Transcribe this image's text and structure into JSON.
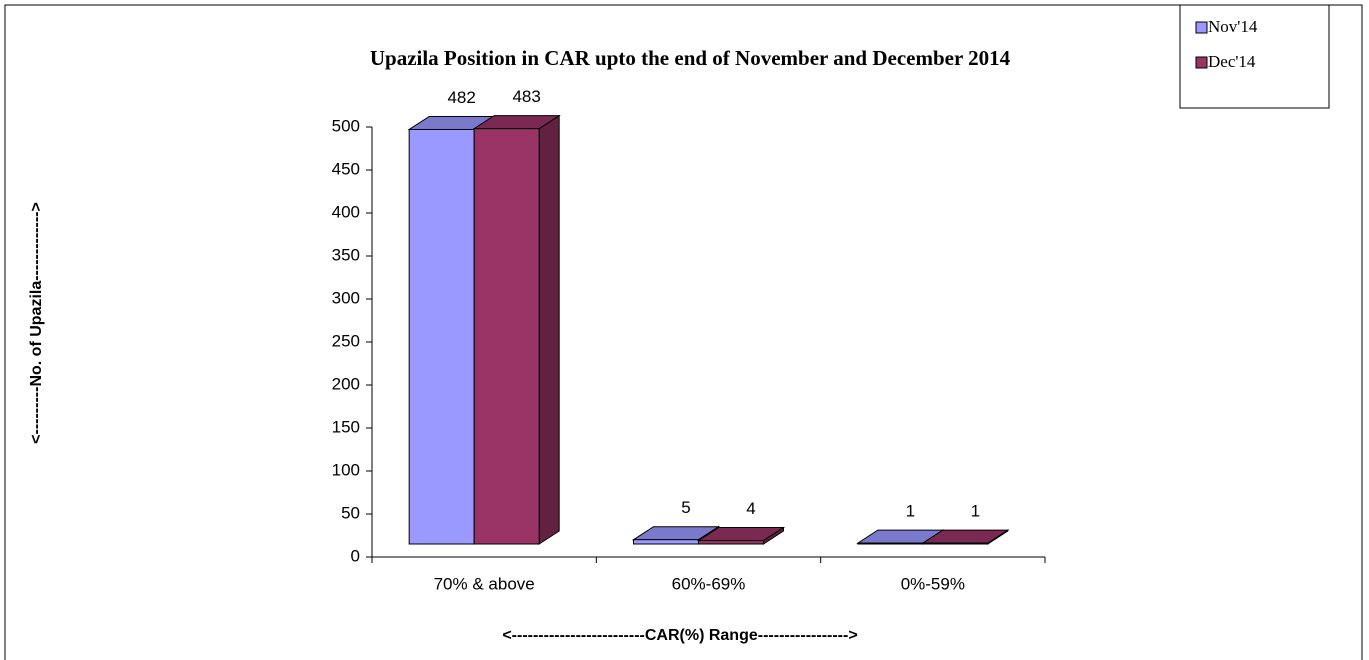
{
  "chart_data": {
    "type": "bar3d",
    "title": "Upazila Position in CAR upto the end of  November and December 2014",
    "y_axis_label": "<---------No. of Upazila------------->",
    "x_axis_label": "<-------------------------CAR(%) Range----------------->",
    "categories": [
      "70% & above",
      "60%-69%",
      "0%-59%"
    ],
    "series": [
      {
        "name": "Nov'14",
        "color": "#9999ff",
        "values": [
          482,
          5,
          1
        ]
      },
      {
        "name": "Dec'14",
        "color": "#993366",
        "values": [
          483,
          4,
          1
        ]
      }
    ],
    "ylim": [
      0,
      500
    ],
    "yticks": [
      0,
      50,
      100,
      150,
      200,
      250,
      300,
      350,
      400,
      450,
      500
    ],
    "legend": "top-right"
  }
}
